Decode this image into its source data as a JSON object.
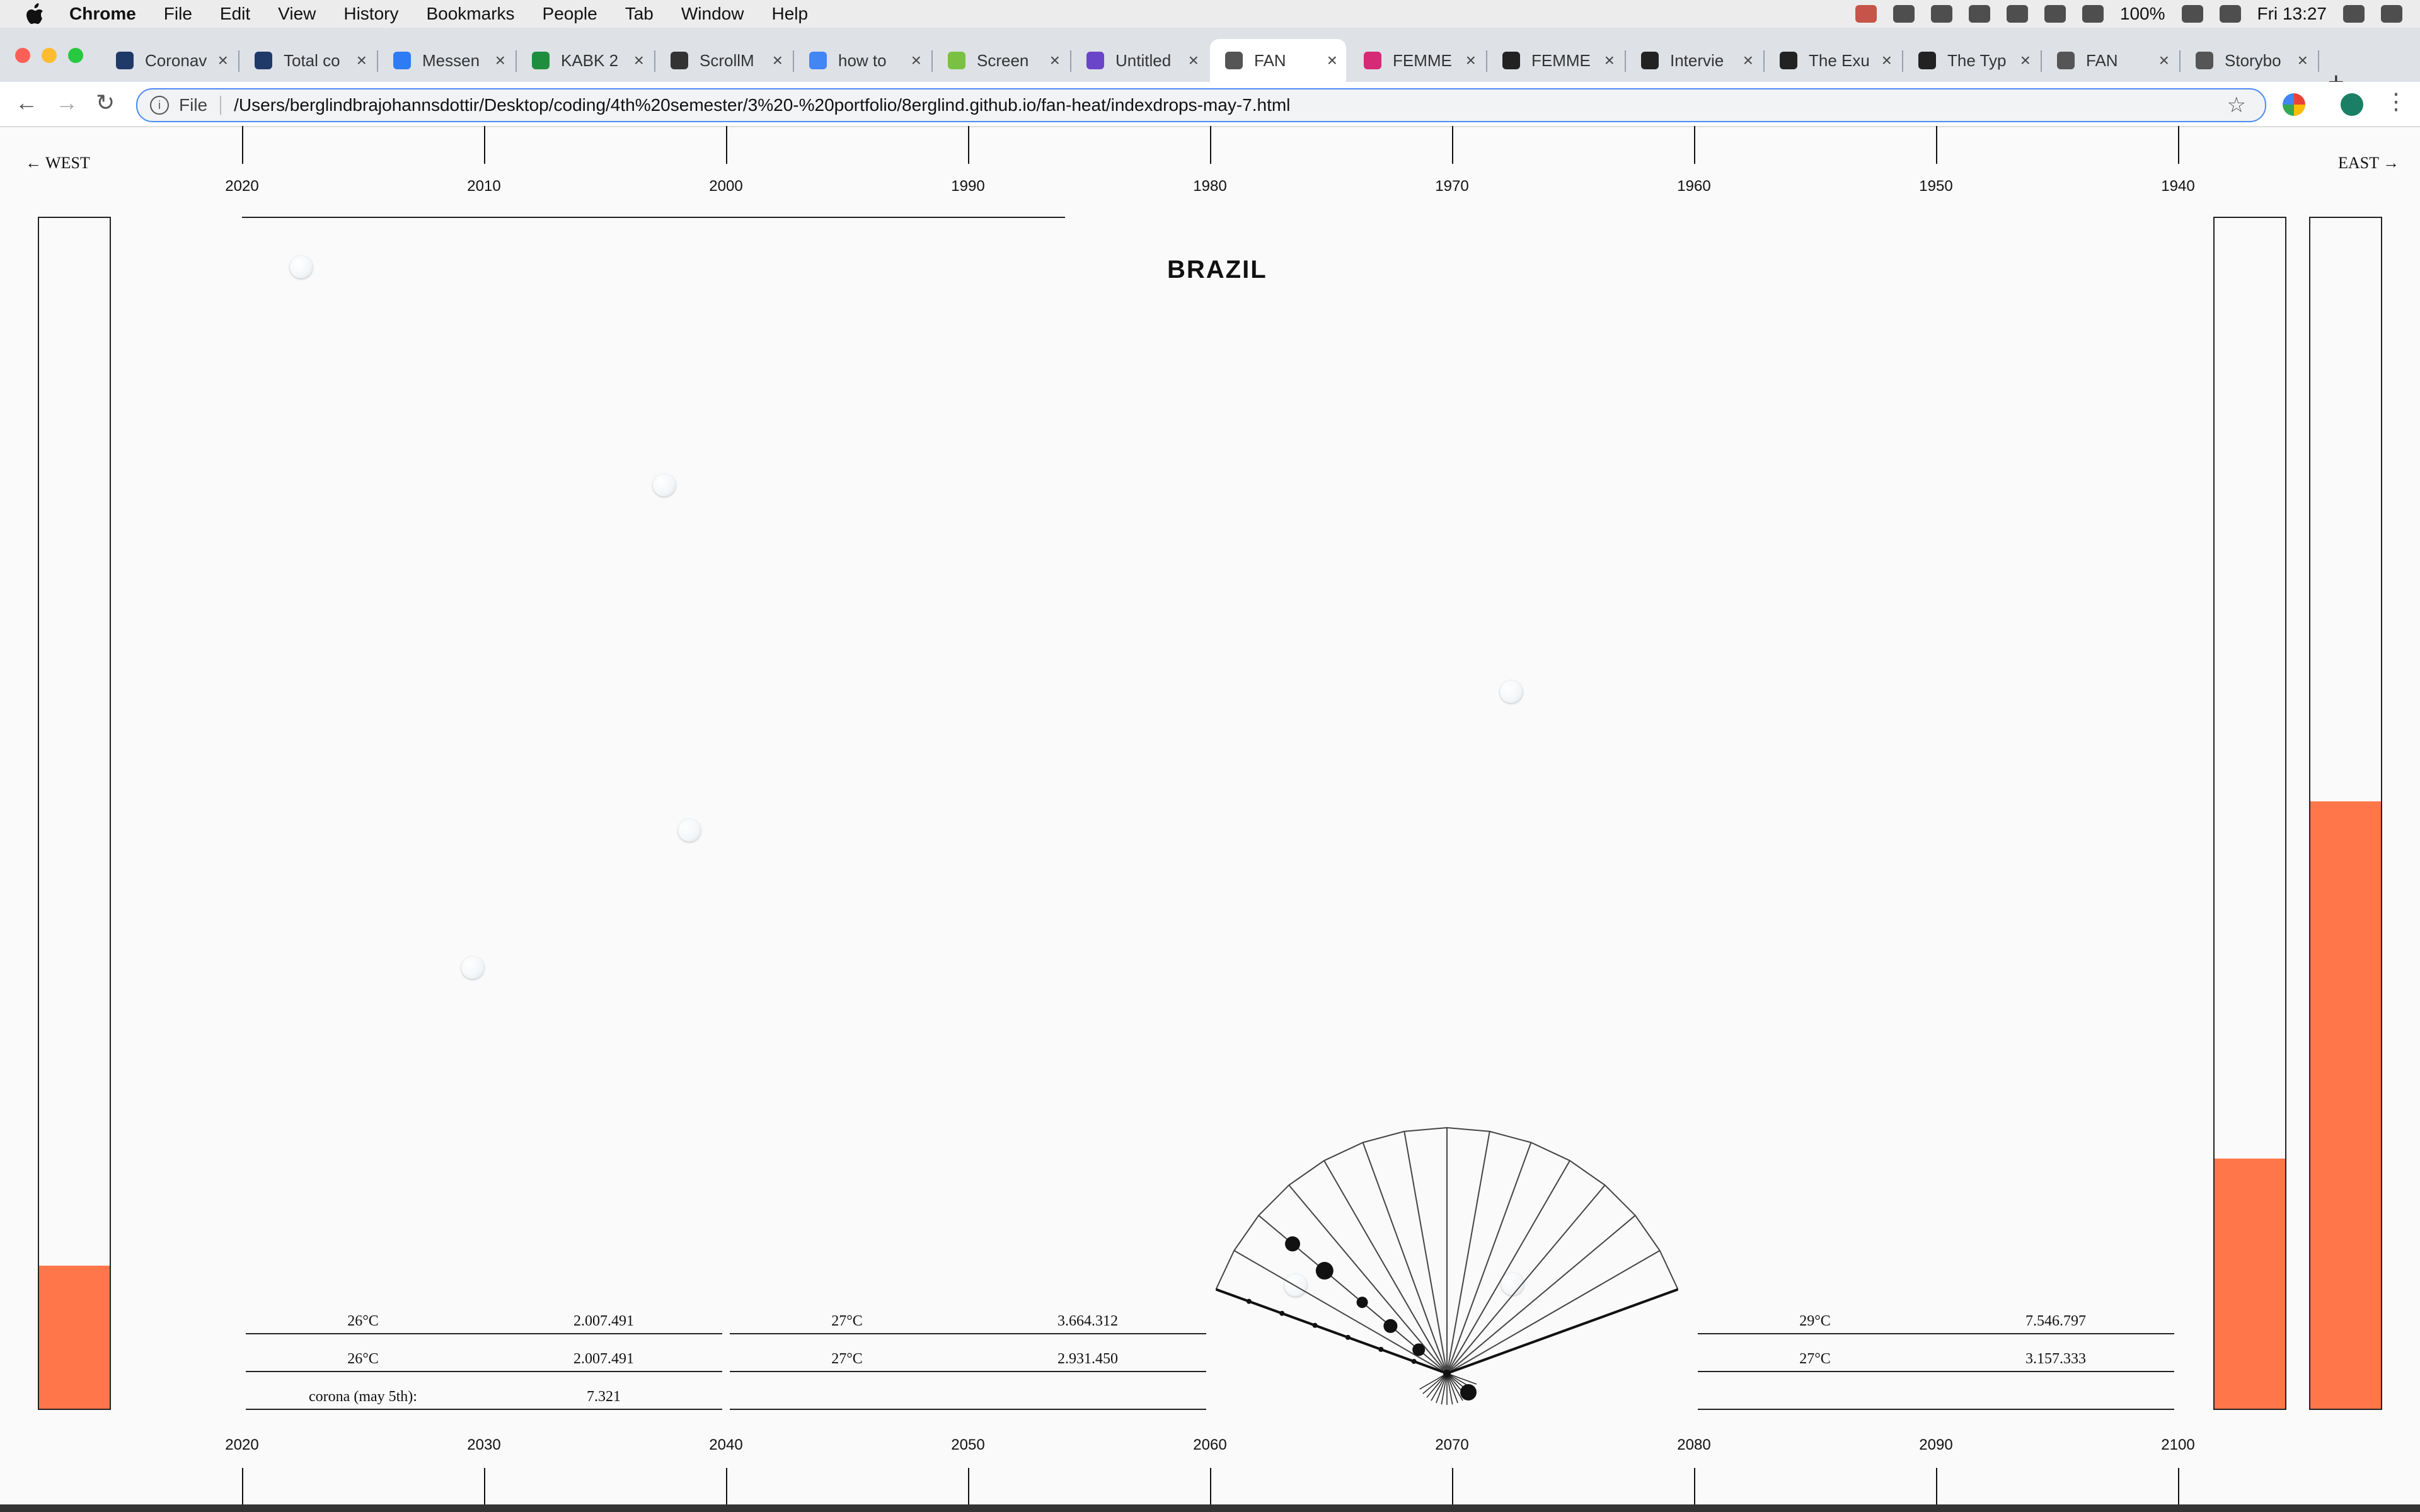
{
  "menubar": {
    "app": "Chrome",
    "items": [
      "File",
      "Edit",
      "View",
      "History",
      "Bookmarks",
      "People",
      "Tab",
      "Window",
      "Help"
    ],
    "battery": "100%",
    "clock": "Fri 13:27"
  },
  "tabs": [
    {
      "title": "Coronav",
      "icon": "data-icon",
      "icon_color": "#1f3a68"
    },
    {
      "title": "Total co",
      "icon": "data-icon",
      "icon_color": "#1f3a68"
    },
    {
      "title": "Messen",
      "icon": "messenger-icon",
      "icon_color": "#2e7bf6"
    },
    {
      "title": "KABK 2",
      "icon": "sheets-icon",
      "icon_color": "#1e8e3e"
    },
    {
      "title": "ScrollM",
      "icon": "hat-icon",
      "icon_color": "#333333"
    },
    {
      "title": "how to",
      "icon": "google-icon",
      "icon_color": "#4285f4"
    },
    {
      "title": "Screen",
      "icon": "screen-icon",
      "icon_color": "#7ac143"
    },
    {
      "title": "Untitled",
      "icon": "doc-icon",
      "icon_color": "#6b45c9"
    },
    {
      "title": "FAN",
      "icon": "globe-icon",
      "icon_color": "#555555",
      "active": true
    },
    {
      "title": "FEMME",
      "icon": "instagram-icon",
      "icon_color": "#d62976"
    },
    {
      "title": "FEMME",
      "icon": "u-icon",
      "icon_color": "#222222"
    },
    {
      "title": "Intervie",
      "icon": "u-icon",
      "icon_color": "#222222"
    },
    {
      "title": "The Exu",
      "icon": "u-icon",
      "icon_color": "#222222"
    },
    {
      "title": "The Typ",
      "icon": "u-icon",
      "icon_color": "#222222"
    },
    {
      "title": "FAN",
      "icon": "globe-icon",
      "icon_color": "#555555"
    },
    {
      "title": "Storybo",
      "icon": "globe-icon",
      "icon_color": "#555555"
    }
  ],
  "toolbar": {
    "scheme_label": "File",
    "url": "/Users/berglindbrajohannsdottir/Desktop/coding/4th%20semester/3%20-%20portfolio/8erglind.github.io/fan-heat/indexdrops-may-7.html"
  },
  "page": {
    "west_label": "← WEST",
    "east_label": "EAST →",
    "country": "BRAZIL",
    "top_years": [
      "2020",
      "2010",
      "2000",
      "1990",
      "1980",
      "1970",
      "1960",
      "1950",
      "1940"
    ],
    "bottom_years": [
      "2020",
      "2030",
      "2040",
      "2050",
      "2060",
      "2070",
      "2080",
      "2090",
      "2100"
    ],
    "left_bar_level": 0.12,
    "right_bar1_level": 0.21,
    "right_bar2_level": 0.51,
    "accent": "#ff764a",
    "tables": {
      "left": [
        {
          "temp": "26°C",
          "value": "2.007.491"
        },
        {
          "temp": "26°C",
          "value": "2.007.491"
        },
        {
          "temp": "corona (may 5th):",
          "value": "7.321"
        }
      ],
      "middle": [
        {
          "temp": "27°C",
          "value": "3.664.312"
        },
        {
          "temp": "27°C",
          "value": "2.931.450"
        },
        {
          "temp": "",
          "value": ""
        }
      ],
      "right": [
        {
          "temp": "29°C",
          "value": "7.546.797"
        },
        {
          "temp": "27°C",
          "value": "3.157.333"
        },
        {
          "temp": "",
          "value": ""
        }
      ]
    }
  }
}
